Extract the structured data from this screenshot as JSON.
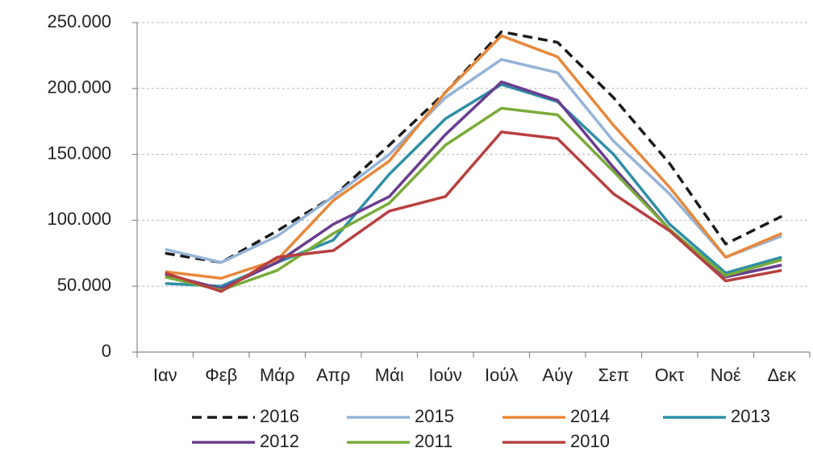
{
  "chart_data": {
    "type": "line",
    "categories": [
      "Ιαν",
      "Φεβ",
      "Μάρ",
      "Απρ",
      "Μάι",
      "Ιούν",
      "Ιούλ",
      "Αύγ",
      "Σεπ",
      "Οκτ",
      "Νοέ",
      "Δεκ"
    ],
    "series": [
      {
        "name": "2016",
        "color": "#1a1a1a",
        "style": "dashed",
        "values": [
          75000,
          68000,
          92000,
          118000,
          157000,
          197000,
          243000,
          235000,
          193000,
          143000,
          82000,
          103000
        ]
      },
      {
        "name": "2015",
        "color": "#95b3d7",
        "style": "solid",
        "values": [
          78000,
          68000,
          88000,
          118000,
          150000,
          193000,
          222000,
          212000,
          160000,
          120000,
          72000,
          88000
        ]
      },
      {
        "name": "2014",
        "color": "#e8883a",
        "style": "solid",
        "values": [
          61000,
          56000,
          70000,
          115000,
          145000,
          197000,
          240000,
          224000,
          172000,
          125000,
          72000,
          90000
        ]
      },
      {
        "name": "2013",
        "color": "#2e8fa6",
        "style": "solid",
        "values": [
          52000,
          50000,
          68000,
          85000,
          135000,
          177000,
          203000,
          190000,
          150000,
          97000,
          60000,
          72000
        ]
      },
      {
        "name": "2012",
        "color": "#6a3d8f",
        "style": "solid",
        "values": [
          59000,
          48000,
          68000,
          97000,
          118000,
          165000,
          205000,
          191000,
          140000,
          93000,
          57000,
          66000
        ]
      },
      {
        "name": "2011",
        "color": "#7aab3a",
        "style": "solid",
        "values": [
          57000,
          47000,
          62000,
          90000,
          113000,
          157000,
          185000,
          180000,
          137000,
          93000,
          58000,
          70000
        ]
      },
      {
        "name": "2010",
        "color": "#b84040",
        "style": "solid",
        "values": [
          60000,
          46000,
          72000,
          77000,
          107000,
          118000,
          167000,
          162000,
          120000,
          92000,
          54000,
          62000
        ]
      }
    ],
    "ylim": [
      0,
      250000
    ],
    "yticks": [
      0,
      {
        "value": 50000,
        "label": "50.000"
      },
      {
        "value": 100000,
        "label": "100.000"
      },
      {
        "value": 150000,
        "label": "150.000"
      },
      {
        "value": 200000,
        "label": "200.000"
      },
      {
        "value": 250000,
        "label": "250.000"
      }
    ],
    "grid": true,
    "legend": "bottom"
  }
}
